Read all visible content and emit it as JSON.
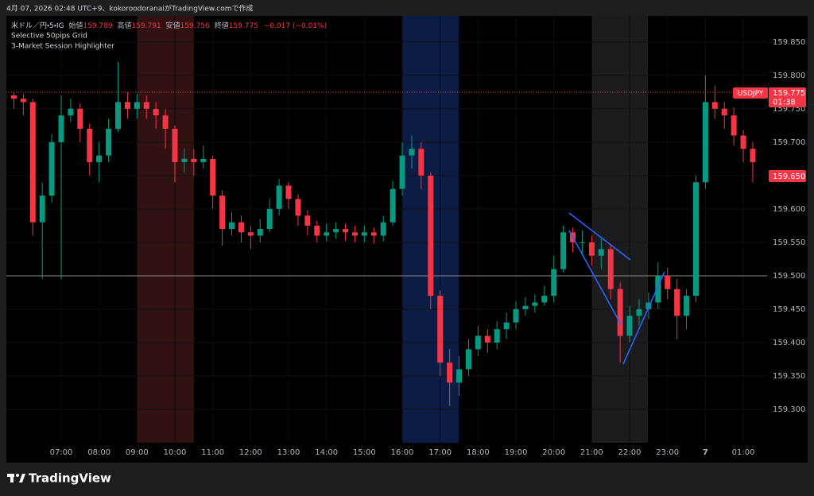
{
  "header": "4月 07, 2026 02:48 UTC+9、kokoroodoranaiがTradingView.comで作成",
  "chart_data": {
    "type": "candlestick",
    "symbol": "米ドル／円・5・IG",
    "ohlc_legend": [
      {
        "label": "始値",
        "value": 159.789
      },
      {
        "label": "高値",
        "value": 159.791
      },
      {
        "label": "安値",
        "value": 159.756
      },
      {
        "label": "終値",
        "value": 159.775
      }
    ],
    "change": "−0.017 (−0.01%)",
    "up_color": "#089981",
    "down_color": "#f23645",
    "x": [
      "05:45",
      "06:00",
      "06:15",
      "06:30",
      "06:45",
      "07:00",
      "07:15",
      "07:30",
      "07:45",
      "08:00",
      "08:15",
      "08:30",
      "08:45",
      "09:00",
      "09:15",
      "09:30",
      "09:45",
      "10:00",
      "10:15",
      "10:30",
      "10:45",
      "11:00",
      "11:15",
      "11:30",
      "11:45",
      "12:00",
      "12:15",
      "12:30",
      "12:45",
      "13:00",
      "13:15",
      "13:30",
      "13:45",
      "14:00",
      "14:15",
      "14:30",
      "14:45",
      "15:00",
      "15:15",
      "15:30",
      "15:45",
      "16:00",
      "16:15",
      "16:30",
      "16:45",
      "17:00",
      "17:15",
      "17:30",
      "17:45",
      "18:00",
      "18:15",
      "18:30",
      "18:45",
      "19:00",
      "19:15",
      "19:30",
      "19:45",
      "20:00",
      "20:15",
      "20:30",
      "20:45",
      "21:00",
      "21:15",
      "21:30",
      "21:45",
      "22:00",
      "22:15",
      "22:30",
      "22:45",
      "23:00",
      "23:15",
      "23:30",
      "23:45",
      "00:00",
      "00:15",
      "00:30",
      "00:45",
      "01:00",
      "01:15"
    ],
    "open": [
      159.77,
      159.765,
      159.76,
      159.58,
      159.62,
      159.7,
      159.74,
      159.75,
      159.72,
      159.67,
      159.68,
      159.72,
      159.76,
      159.75,
      159.76,
      159.75,
      159.74,
      159.72,
      159.67,
      159.675,
      159.67,
      159.675,
      159.62,
      159.57,
      159.58,
      159.565,
      159.56,
      159.57,
      159.6,
      159.635,
      159.615,
      159.59,
      159.575,
      159.56,
      159.565,
      159.57,
      159.565,
      159.56,
      159.565,
      159.56,
      159.58,
      159.63,
      159.68,
      159.69,
      159.65,
      159.47,
      159.37,
      159.34,
      159.36,
      159.39,
      159.41,
      159.4,
      159.42,
      159.43,
      159.45,
      159.455,
      159.46,
      159.47,
      159.51,
      159.565,
      159.55,
      159.55,
      159.53,
      159.54,
      159.48,
      159.41,
      159.44,
      159.45,
      159.46,
      159.5,
      159.48,
      159.44,
      159.47,
      159.64,
      159.76,
      159.75,
      159.74,
      159.71,
      159.69
    ],
    "high": [
      159.775,
      159.772,
      159.765,
      159.64,
      159.712,
      159.77,
      159.765,
      159.758,
      159.728,
      159.7,
      159.735,
      159.82,
      159.775,
      159.772,
      159.77,
      159.76,
      159.75,
      159.725,
      159.69,
      159.69,
      159.695,
      159.68,
      159.628,
      159.595,
      159.59,
      159.575,
      159.585,
      159.615,
      159.645,
      159.64,
      159.622,
      159.598,
      159.582,
      159.578,
      159.58,
      159.578,
      159.575,
      159.575,
      159.572,
      159.59,
      159.642,
      159.7,
      159.71,
      159.7,
      159.655,
      159.478,
      159.39,
      159.38,
      159.405,
      159.425,
      159.42,
      159.432,
      159.445,
      159.462,
      159.468,
      159.472,
      159.485,
      159.53,
      159.575,
      159.572,
      159.568,
      159.56,
      159.555,
      159.548,
      159.49,
      159.455,
      159.465,
      159.475,
      159.52,
      159.512,
      159.495,
      159.48,
      159.65,
      159.8,
      159.785,
      159.76,
      159.752,
      159.718,
      159.7
    ],
    "low": [
      159.75,
      159.74,
      159.56,
      159.495,
      159.61,
      159.495,
      159.73,
      159.7,
      159.65,
      159.64,
      159.67,
      159.715,
      159.735,
      159.735,
      159.735,
      159.72,
      159.69,
      159.64,
      159.655,
      159.65,
      159.66,
      159.6,
      159.545,
      159.56,
      159.55,
      159.54,
      159.55,
      159.565,
      159.59,
      159.6,
      159.575,
      159.56,
      159.55,
      159.552,
      159.555,
      159.552,
      159.55,
      159.55,
      159.548,
      159.552,
      159.575,
      159.62,
      159.66,
      159.63,
      159.45,
      159.35,
      159.305,
      159.32,
      159.35,
      159.38,
      159.385,
      159.39,
      159.405,
      159.42,
      159.44,
      159.445,
      159.455,
      159.46,
      159.505,
      159.535,
      159.53,
      159.515,
      159.51,
      159.465,
      159.37,
      159.4,
      159.425,
      159.435,
      159.45,
      159.465,
      159.405,
      159.42,
      159.46,
      159.63,
      159.735,
      159.72,
      159.695,
      159.67,
      159.64
    ],
    "close": [
      159.765,
      159.76,
      159.58,
      159.62,
      159.7,
      159.74,
      159.75,
      159.72,
      159.67,
      159.68,
      159.72,
      159.76,
      159.75,
      159.76,
      159.75,
      159.74,
      159.72,
      159.67,
      159.675,
      159.67,
      159.675,
      159.62,
      159.57,
      159.58,
      159.565,
      159.56,
      159.57,
      159.6,
      159.635,
      159.615,
      159.59,
      159.575,
      159.56,
      159.565,
      159.57,
      159.565,
      159.56,
      159.565,
      159.56,
      159.58,
      159.63,
      159.68,
      159.69,
      159.65,
      159.47,
      159.37,
      159.34,
      159.36,
      159.39,
      159.41,
      159.4,
      159.42,
      159.43,
      159.45,
      159.455,
      159.46,
      159.47,
      159.51,
      159.565,
      159.55,
      159.55,
      159.53,
      159.54,
      159.48,
      159.41,
      159.44,
      159.45,
      159.46,
      159.5,
      159.48,
      159.44,
      159.47,
      159.64,
      159.76,
      159.75,
      159.74,
      159.71,
      159.69,
      159.67
    ],
    "ylim": [
      159.25,
      159.889
    ],
    "yticks": [
      {
        "value": 159.3,
        "label": "159.300"
      },
      {
        "value": 159.35,
        "label": "159.350"
      },
      {
        "value": 159.4,
        "label": "159.400"
      },
      {
        "value": 159.45,
        "label": "159.450"
      },
      {
        "value": 159.5,
        "label": "159.500"
      },
      {
        "value": 159.55,
        "label": "159.550"
      },
      {
        "value": 159.6,
        "label": "159.600"
      },
      {
        "value": 159.65,
        "label": "159.650"
      },
      {
        "value": 159.7,
        "label": "159.700"
      },
      {
        "value": 159.75,
        "label": "159.750"
      },
      {
        "value": 159.8,
        "label": "159.800"
      },
      {
        "value": 159.85,
        "label": "159.850"
      }
    ],
    "xticks": [
      "07:00",
      "08:00",
      "09:00",
      "10:00",
      "11:00",
      "12:00",
      "13:00",
      "14:00",
      "15:00",
      "16:00",
      "17:00",
      "18:00",
      "19:00",
      "20:00",
      "21:00",
      "22:00",
      "23:00",
      {
        "value": "00:00",
        "label": "7"
      },
      "01:00"
    ]
  },
  "indicators": [
    "Selective 50pips Grid",
    "3-Market Session Highlighter"
  ],
  "price_labels": {
    "symbol": "USDJPY",
    "price": "159.775",
    "countdown": "01:38",
    "last": "159.650"
  },
  "footer": "TradingView"
}
